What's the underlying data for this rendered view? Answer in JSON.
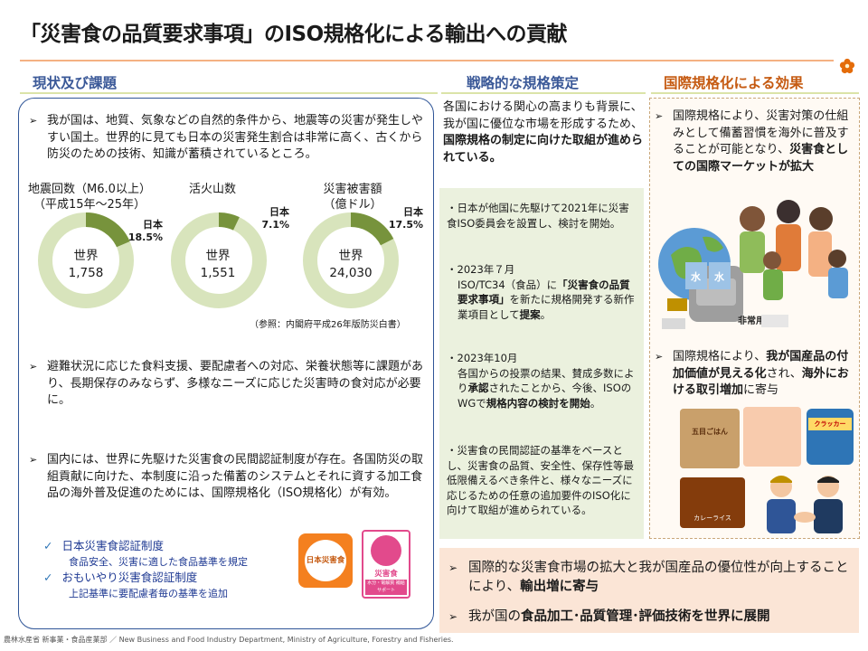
{
  "title": "「災害食の品質要求事項」のISO規格化による輸出への貢献",
  "sections": {
    "left_heading": "現状及び課題",
    "mid_heading": "戦略的な規格策定",
    "right_heading": "国際規格化による効果"
  },
  "left": {
    "bullet1": "我が国は、地質、気象などの自然的条件から、地震等の災害が発生しやすい国土。世界的に見ても日本の災害発生割合は非常に高く、古くから防災のための技術、知識が蓄積されているところ。",
    "bullet2": "避難状況に応じた食料支援、要配慮者への対応、栄養状態等に課題があり、長期保存のみならず、多様なニーズに応じた災害時の食対応が必要に。",
    "bullet3": "国内には、世界に先駆けた災害食の民間認証制度が存在。各国防災の取組貢献に向けた、本制度に沿った備蓄のシステムとそれに資する加工食品の海外普及促進のためには、国際規格化（ISO規格化）が有効。",
    "reference": "（参照：内閣府平成26年版防災白書）",
    "check1": "日本災害食認証制度",
    "sub1": "食品安全、災害に適した食品基準を規定",
    "check2": "おもいやり災害食認証制度",
    "sub2": "上記基準に要配慮者毎の基準を追加",
    "logo1_text": "日本災害食",
    "logo2_text": "災害食",
    "logo2_sub": "水分・電解質 補給サポート"
  },
  "charts": [
    {
      "label_line1": "地震回数（M6.0以上）",
      "label_line2": "（平成15年～25年）",
      "world_label": "世界",
      "world_value": "1,758",
      "japan_label": "日本",
      "japan_pct_text": "18.5%",
      "japan_share": 0.185
    },
    {
      "label_line1": "活火山数",
      "label_line2": "",
      "world_label": "世界",
      "world_value": "1,551",
      "japan_label": "日本",
      "japan_pct_text": "7.1%",
      "japan_share": 0.071
    },
    {
      "label_line1": "災害被害額",
      "label_line2": "（億ドル）",
      "world_label": "世界",
      "world_value": "24,030",
      "japan_label": "日本",
      "japan_pct_text": "17.5%",
      "japan_share": 0.175
    }
  ],
  "middle": {
    "intro_plain": "各国における関心の高まりも背景に、我が国に優位な市場を形成するため、",
    "intro_bold": "国際規格の制定に向けた取組が進められている。",
    "item1": "・日本が他国に先駆けて2021年に災害食ISO委員会を設置し、検討を開始。",
    "item2_a": "・2023年７月",
    "item2_b": "ISO/TC34（食品）に",
    "item2_bold": "「災害食の品質要求事項」",
    "item2_c": "を新たに規格開発する新作業項目として",
    "item2_bold2": "提案",
    "item2_d": "。",
    "item3_a": "・2023年10月",
    "item3_b": "各国からの投票の結果、賛成多数により",
    "item3_bold": "承認",
    "item3_c": "されたことから、今後、ISOのWGで",
    "item3_bold2": "規格内容の検討を開始",
    "item3_d": "。",
    "item4": "・災害食の民間認証の基準をベースとし、災害食の品質、安全性、保存性等最低限備えるべき条件と、様々なニーズに応じるための任意の追加要件のISO化に向けて取組が進められている。"
  },
  "right": {
    "b1_plain": "国際規格により、災害対策の仕組みとして備蓄習慣を海外に普及することが可能となり、",
    "b1_bold": "災害食としての国際マーケットが拡大",
    "b2_plain1": "国際規格により、",
    "b2_bold1": "我が国産品の付加価値が見える化",
    "b2_plain2": "され、",
    "b2_bold2": "海外における取引増加",
    "b2_plain3": "に寄与",
    "bag_label": "非常用",
    "water_label": "水",
    "pkg1": "五目ごはん",
    "pkg2": "クラッカー",
    "pkg3": "カレーライス"
  },
  "bottom": {
    "line1_plain": "国際的な災害食市場の拡大と我が国産品の優位性が向上することにより、",
    "line1_bold": "輸出増に寄与",
    "line2_plain": "我が国の",
    "line2_bold": "食品加工･品質管理･評価技術を世界に展開"
  },
  "footer": "農林水産省 新事業・食品産業部 ／ New Business and Food Industry Department, Ministry of Agriculture, Forestry and Fisheries.",
  "colors": {
    "donut_world": "#d8e4bc",
    "donut_japan": "#77933c",
    "panel_border": "#2f5597",
    "heading_blue": "#3b5998",
    "heading_orange": "#c55a11"
  }
}
